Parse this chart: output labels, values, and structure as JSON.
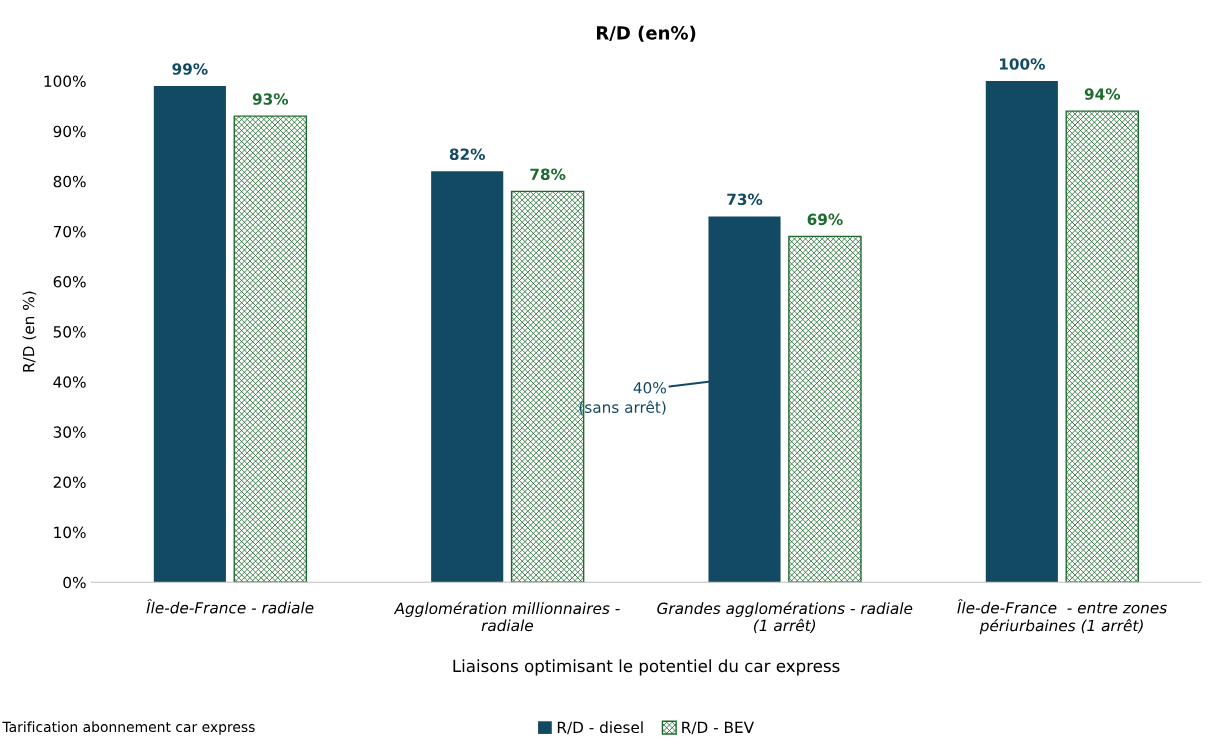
{
  "chart_data": {
    "type": "bar",
    "title": "R/D (en%)",
    "xlabel": "Liaisons optimisant le potentiel du car express",
    "ylabel": "R/D (en %)",
    "categories": [
      "Île-de-France - radiale",
      "Agglomération millionnaires -\nradiale",
      "Grandes agglomérations - radiale\n(1 arrêt)",
      "Île-de-France  - entre zones\npériurbaines (1 arrêt)"
    ],
    "series": [
      {
        "name": "R/D - diesel",
        "color": "#124a63",
        "values": [
          99,
          82,
          73,
          100
        ],
        "value_labels": [
          "99%",
          "82%",
          "73%",
          "100%"
        ]
      },
      {
        "name": "R/D - BEV",
        "color": "#1e6b2e",
        "values": [
          93,
          78,
          69,
          94
        ],
        "value_labels": [
          "93%",
          "78%",
          "69%",
          "94%"
        ]
      }
    ],
    "ylim": [
      0,
      100
    ],
    "yticks": [
      {
        "value": 0,
        "label": "0%"
      },
      {
        "value": 10,
        "label": "10%"
      },
      {
        "value": 20,
        "label": "20%"
      },
      {
        "value": 30,
        "label": "30%"
      },
      {
        "value": 40,
        "label": "40%"
      },
      {
        "value": 50,
        "label": "50%"
      },
      {
        "value": 60,
        "label": "60%"
      },
      {
        "value": 70,
        "label": "70%"
      },
      {
        "value": 80,
        "label": "80%"
      },
      {
        "value": 90,
        "label": "90%"
      },
      {
        "value": 100,
        "label": "100%"
      }
    ],
    "grid": false,
    "legend": "bottom",
    "annotations": [
      "40%\n(sans arrêt)",
      "Tarification abonnement car express"
    ]
  }
}
